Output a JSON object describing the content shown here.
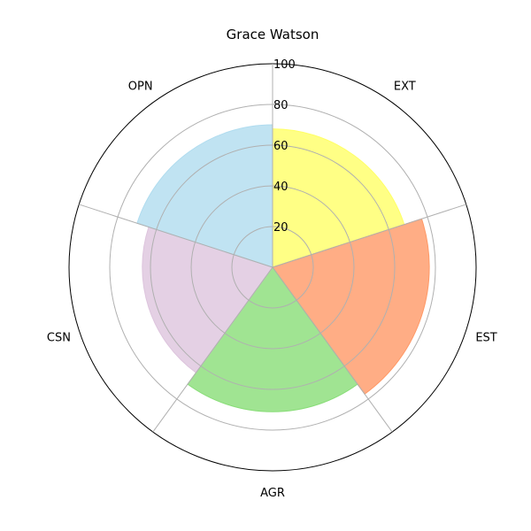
{
  "chart_data": {
    "type": "polar-bar",
    "title": "Grace Watson",
    "categories": [
      "EXT",
      "EST",
      "AGR",
      "CSN",
      "OPN"
    ],
    "values": [
      68,
      77,
      71,
      64,
      70
    ],
    "colors": [
      "#ffff66",
      "#ff9966",
      "#88dd77",
      "#ddc4dd",
      "#b0dcef"
    ],
    "r_ticks": [
      20,
      40,
      60,
      80,
      100
    ],
    "r_tick_labels": [
      "20",
      "40",
      "60",
      "80",
      "100"
    ],
    "rlim": [
      0,
      100
    ],
    "grid": true
  }
}
